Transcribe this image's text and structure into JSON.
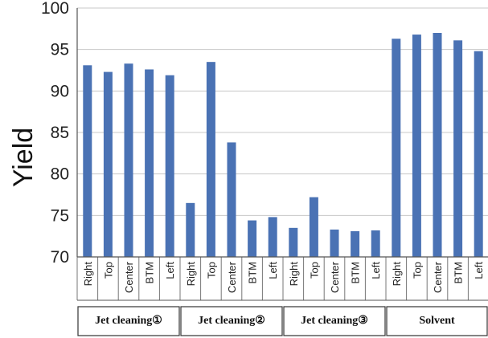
{
  "chart_data": {
    "type": "bar",
    "ylabel": "Yield",
    "xlabel": "",
    "ylim": [
      70,
      100
    ],
    "yticks": [
      70,
      75,
      80,
      85,
      90,
      95,
      100
    ],
    "grid": true,
    "bar_color": "#4a72b4",
    "grid_color": "#c8c8c8",
    "groups": [
      {
        "name": "Jet cleaning①",
        "categories": [
          "Right",
          "Top",
          "Center",
          "BTM",
          "Left"
        ],
        "values": [
          93.1,
          92.3,
          93.3,
          92.6,
          91.9
        ]
      },
      {
        "name": "Jet cleaning②",
        "categories": [
          "Right",
          "Top",
          "Center",
          "BTM",
          "Left"
        ],
        "values": [
          76.5,
          93.5,
          83.8,
          74.4,
          74.8
        ]
      },
      {
        "name": "Jet cleaning③",
        "categories": [
          "Right",
          "Top",
          "Center",
          "BTM",
          "Left"
        ],
        "values": [
          73.5,
          77.2,
          73.3,
          73.1,
          73.2
        ]
      },
      {
        "name": "Solvent",
        "categories": [
          "Right",
          "Top",
          "Center",
          "BTM",
          "Left"
        ],
        "values": [
          96.3,
          96.8,
          97.0,
          96.1,
          94.8
        ]
      }
    ]
  }
}
